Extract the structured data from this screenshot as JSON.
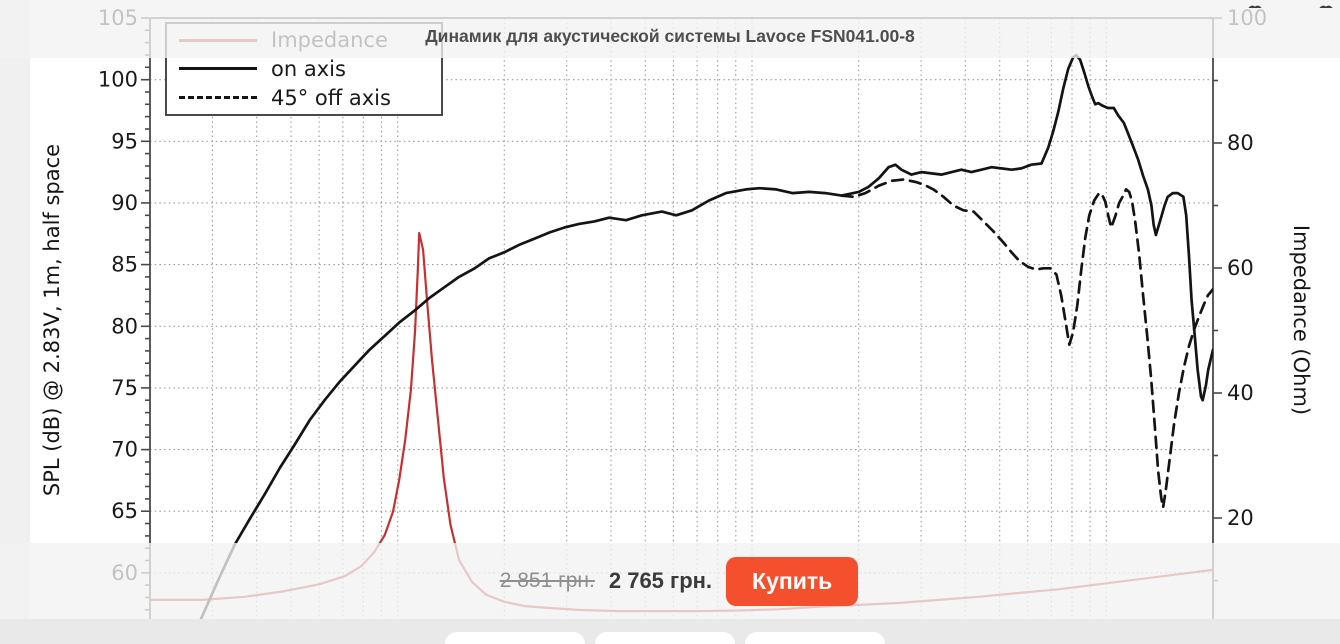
{
  "product": {
    "title": "Динамик для акустической системы Lavoce FSN041.00-8",
    "price_old": "2 851 грн.",
    "price_new": "2 765 грн.",
    "buy_button": "Купить"
  },
  "chart_data": {
    "type": "line",
    "x_axis": {
      "scale": "log",
      "unit": "Hz",
      "min": 20,
      "max": 20000,
      "tick_labels_visible": false
    },
    "y_left": {
      "label": "SPL (dB) @ 2.83V, 1m, half space",
      "ticks": [
        105,
        100,
        95,
        90,
        85,
        80,
        75,
        70,
        65,
        60
      ],
      "minor_step": 1
    },
    "y_right": {
      "label": "Impedance (Ohm)",
      "min": 0,
      "max": 100,
      "ticks": [
        100,
        80,
        60,
        40,
        20
      ],
      "minor_step": 10
    },
    "grid": {
      "style": "dotted",
      "horizontal_step_db": 5,
      "vertical": "log minor decades"
    },
    "legend": {
      "position": "top-left",
      "entries": [
        {
          "label": "Impedance",
          "color": "#c53131",
          "style": "solid"
        },
        {
          "label": "on axis",
          "color": "#141414",
          "style": "solid"
        },
        {
          "label": "45° off axis",
          "color": "#141414",
          "style": "dashed"
        }
      ]
    },
    "series": [
      {
        "name": "Impedance",
        "axis": "right",
        "unit": "Ohm",
        "color": "#c53131",
        "style": "solid",
        "points": [
          [
            20,
            6.9
          ],
          [
            28,
            6.9
          ],
          [
            37,
            7.4
          ],
          [
            48,
            8.3
          ],
          [
            60,
            9.4
          ],
          [
            71,
            10.7
          ],
          [
            79,
            12.3
          ],
          [
            86,
            14.6
          ],
          [
            92,
            17.3
          ],
          [
            97,
            21
          ],
          [
            101,
            26.1
          ],
          [
            105,
            32.5
          ],
          [
            109,
            40.5
          ],
          [
            112,
            50
          ],
          [
            114,
            59.7
          ],
          [
            115,
            65.6
          ],
          [
            118,
            62.9
          ],
          [
            121,
            54.9
          ],
          [
            125,
            45.3
          ],
          [
            130,
            35.7
          ],
          [
            135,
            26.4
          ],
          [
            141,
            18.9
          ],
          [
            149,
            13.3
          ],
          [
            162,
            9.8
          ],
          [
            178,
            7.7
          ],
          [
            200,
            6.6
          ],
          [
            228,
            5.9
          ],
          [
            268,
            5.6
          ],
          [
            325,
            5.3
          ],
          [
            422,
            5.1
          ],
          [
            547,
            5.1
          ],
          [
            709,
            5.1
          ],
          [
            918,
            5.2
          ],
          [
            1190,
            5.4
          ],
          [
            1540,
            5.8
          ],
          [
            2000,
            6.1
          ],
          [
            2590,
            6.4
          ],
          [
            3360,
            6.9
          ],
          [
            4360,
            7.4
          ],
          [
            5650,
            8
          ],
          [
            7320,
            8.6
          ],
          [
            9490,
            9.4
          ],
          [
            12300,
            10.2
          ],
          [
            15900,
            11
          ],
          [
            20000,
            11.7
          ]
        ]
      },
      {
        "name": "on axis",
        "axis": "left",
        "unit": "dB",
        "color": "#141414",
        "style": "solid",
        "points": [
          [
            25.9,
            54.2
          ],
          [
            28.6,
            57
          ],
          [
            31.5,
            59.7
          ],
          [
            34.7,
            62.3
          ],
          [
            38.3,
            64.4
          ],
          [
            42.2,
            66.4
          ],
          [
            46.5,
            68.5
          ],
          [
            51.2,
            70.4
          ],
          [
            56.5,
            72.4
          ],
          [
            62.2,
            74
          ],
          [
            68.6,
            75.5
          ],
          [
            75.6,
            76.8
          ],
          [
            83.3,
            78.1
          ],
          [
            91.8,
            79.2
          ],
          [
            101,
            80.3
          ],
          [
            112,
            81.3
          ],
          [
            123,
            82.3
          ],
          [
            136,
            83.2
          ],
          [
            149,
            84
          ],
          [
            165,
            84.7
          ],
          [
            181,
            85.5
          ],
          [
            200,
            86
          ],
          [
            220,
            86.6
          ],
          [
            243,
            87.1
          ],
          [
            268,
            87.6
          ],
          [
            295,
            88
          ],
          [
            325,
            88.3
          ],
          [
            359,
            88.5
          ],
          [
            395,
            88.8
          ],
          [
            441,
            88.6
          ],
          [
            489,
            89
          ],
          [
            557,
            89.3
          ],
          [
            611,
            89
          ],
          [
            677,
            89.4
          ],
          [
            756,
            90.2
          ],
          [
            844,
            90.8
          ],
          [
            961,
            91.1
          ],
          [
            1050,
            91.2
          ],
          [
            1170,
            91.1
          ],
          [
            1300,
            90.8
          ],
          [
            1450,
            90.9
          ],
          [
            1610,
            90.8
          ],
          [
            1790,
            90.6
          ],
          [
            2000,
            90.9
          ],
          [
            2130,
            91.3
          ],
          [
            2280,
            92
          ],
          [
            2430,
            92.9
          ],
          [
            2540,
            93.1
          ],
          [
            2640,
            92.7
          ],
          [
            2820,
            92.3
          ],
          [
            3010,
            92.5
          ],
          [
            3210,
            92.4
          ],
          [
            3430,
            92.3
          ],
          [
            3660,
            92.5
          ],
          [
            3900,
            92.7
          ],
          [
            4160,
            92.5
          ],
          [
            4440,
            92.7
          ],
          [
            4740,
            92.9
          ],
          [
            5060,
            92.8
          ],
          [
            5400,
            92.7
          ],
          [
            5760,
            92.8
          ],
          [
            6140,
            93.1
          ],
          [
            6560,
            93.2
          ],
          [
            6860,
            94.5
          ],
          [
            7080,
            95.8
          ],
          [
            7320,
            97.4
          ],
          [
            7560,
            99.3
          ],
          [
            7810,
            100.9
          ],
          [
            8060,
            101.8
          ],
          [
            8220,
            102
          ],
          [
            8440,
            101.6
          ],
          [
            8660,
            100.6
          ],
          [
            8890,
            99.5
          ],
          [
            9120,
            98.6
          ],
          [
            9300,
            98
          ],
          [
            9490,
            98.1
          ],
          [
            9730,
            97.9
          ],
          [
            10100,
            97.7
          ],
          [
            10500,
            97.7
          ],
          [
            10800,
            97.1
          ],
          [
            11200,
            96.5
          ],
          [
            11500,
            95.7
          ],
          [
            11900,
            94.6
          ],
          [
            12300,
            93.5
          ],
          [
            12700,
            92.2
          ],
          [
            13100,
            91.1
          ],
          [
            13400,
            89.8
          ],
          [
            13600,
            88.2
          ],
          [
            13800,
            87.4
          ],
          [
            14200,
            88.6
          ],
          [
            14600,
            89.8
          ],
          [
            14900,
            90.5
          ],
          [
            15400,
            90.8
          ],
          [
            15900,
            90.8
          ],
          [
            16500,
            90.5
          ],
          [
            16800,
            89
          ],
          [
            17100,
            85.8
          ],
          [
            17400,
            82.1
          ],
          [
            17800,
            78.9
          ],
          [
            18100,
            76.5
          ],
          [
            18500,
            74.3
          ],
          [
            18700,
            74
          ],
          [
            19100,
            75.2
          ],
          [
            19400,
            76.5
          ],
          [
            20000,
            78.1
          ]
        ]
      },
      {
        "name": "45° off axis",
        "axis": "left",
        "unit": "dB",
        "color": "#141414",
        "style": "dashed",
        "points": [
          [
            1790,
            90.6
          ],
          [
            1940,
            90.5
          ],
          [
            2090,
            90.8
          ],
          [
            2280,
            91.4
          ],
          [
            2480,
            91.8
          ],
          [
            2680,
            91.9
          ],
          [
            2900,
            91.7
          ],
          [
            3050,
            91.5
          ],
          [
            3250,
            91.1
          ],
          [
            3470,
            90.5
          ],
          [
            3700,
            89.8
          ],
          [
            3950,
            89.4
          ],
          [
            4220,
            89.3
          ],
          [
            4500,
            88.5
          ],
          [
            4800,
            87.7
          ],
          [
            5120,
            86.8
          ],
          [
            5400,
            86
          ],
          [
            5680,
            85.3
          ],
          [
            6030,
            84.8
          ],
          [
            6350,
            84.6
          ],
          [
            6640,
            84.7
          ],
          [
            6950,
            84.7
          ],
          [
            7230,
            84.2
          ],
          [
            7460,
            82.5
          ],
          [
            7660,
            80.5
          ],
          [
            7860,
            78.5
          ],
          [
            8060,
            79.5
          ],
          [
            8280,
            81.7
          ],
          [
            8500,
            84.6
          ],
          [
            8720,
            87.2
          ],
          [
            8950,
            89
          ],
          [
            9240,
            90.2
          ],
          [
            9490,
            90.7
          ],
          [
            9680,
            90.8
          ],
          [
            9930,
            90.1
          ],
          [
            10120,
            89
          ],
          [
            10320,
            88
          ],
          [
            10590,
            88.9
          ],
          [
            10870,
            90
          ],
          [
            11160,
            90.6
          ],
          [
            11370,
            91.1
          ],
          [
            11600,
            90.9
          ],
          [
            11820,
            90.1
          ],
          [
            12060,
            88.5
          ],
          [
            12380,
            85.8
          ],
          [
            12700,
            82.5
          ],
          [
            13030,
            79.3
          ],
          [
            13380,
            75.8
          ],
          [
            13730,
            71.6
          ],
          [
            14000,
            68.3
          ],
          [
            14280,
            66.1
          ],
          [
            14460,
            65.3
          ],
          [
            14750,
            66.9
          ],
          [
            15130,
            69.5
          ],
          [
            15530,
            72.1
          ],
          [
            16040,
            74.6
          ],
          [
            16570,
            76.7
          ],
          [
            17110,
            78.4
          ],
          [
            17680,
            79.7
          ],
          [
            18270,
            80.8
          ],
          [
            18860,
            81.8
          ],
          [
            19350,
            82.5
          ],
          [
            20000,
            83
          ]
        ]
      }
    ]
  }
}
